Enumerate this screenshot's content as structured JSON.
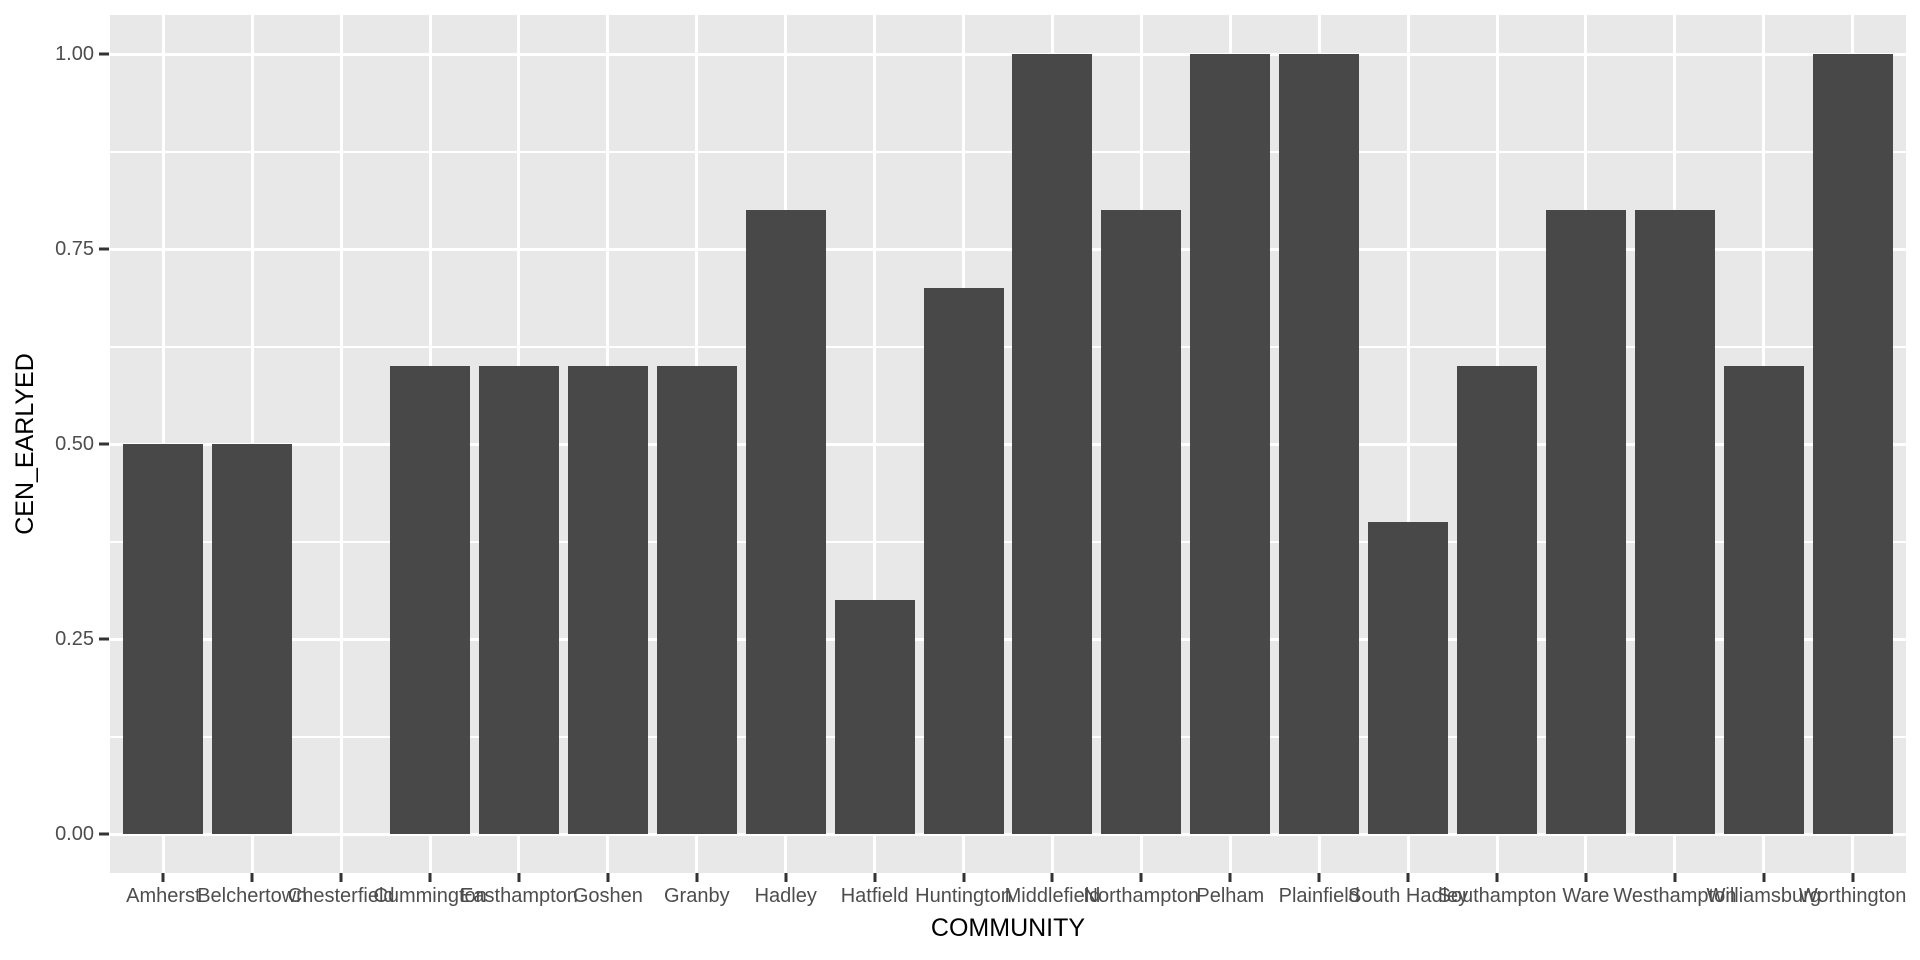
{
  "figure": {
    "x_axis": {
      "title": "COMMUNITY"
    },
    "y_axis": {
      "title": "CEN_EARLYED"
    }
  },
  "chart_data": {
    "type": "bar",
    "title": "",
    "xlabel": "COMMUNITY",
    "ylabel": "CEN_EARLYED",
    "categories": [
      "Amherst",
      "Belchertown",
      "Chesterfield",
      "Cummington",
      "Easthampton",
      "Goshen",
      "Granby",
      "Hadley",
      "Hatfield",
      "Huntington",
      "Middlefield",
      "Northampton",
      "Pelham",
      "Plainfield",
      "South Hadley",
      "Southampton",
      "Ware",
      "Westhampton",
      "Williamsburg",
      "Worthington"
    ],
    "values": [
      0.5,
      0.5,
      0,
      0.6,
      0.6,
      0.6,
      0.6,
      0.8,
      0.3,
      0.7,
      1.0,
      0.8,
      1.0,
      1.0,
      0.4,
      0.6,
      0.8,
      0.8,
      0.6,
      1.0
    ],
    "ylim": [
      0,
      1
    ],
    "yticks": [
      0,
      0.25,
      0.5,
      0.75,
      1.0
    ],
    "ytick_labels": [
      "0.00",
      "0.25",
      "0.50",
      "0.75",
      "1.00"
    ],
    "yticks_minor": [
      0.125,
      0.375,
      0.625,
      0.875
    ],
    "grid": "white major gridlines at y ticks and category centers, white minor gridlines at 0.125 steps; horizontal only for minor",
    "legend": "none",
    "colors": {
      "bar_fill": "#484848",
      "panel_background": "#E8E8E8",
      "gridline": "#FFFFFF",
      "tick_label": "#4D4D4D",
      "tick_mark": "#333333",
      "axis_title": "#000000",
      "outer_background": "#FFFFFF"
    }
  }
}
